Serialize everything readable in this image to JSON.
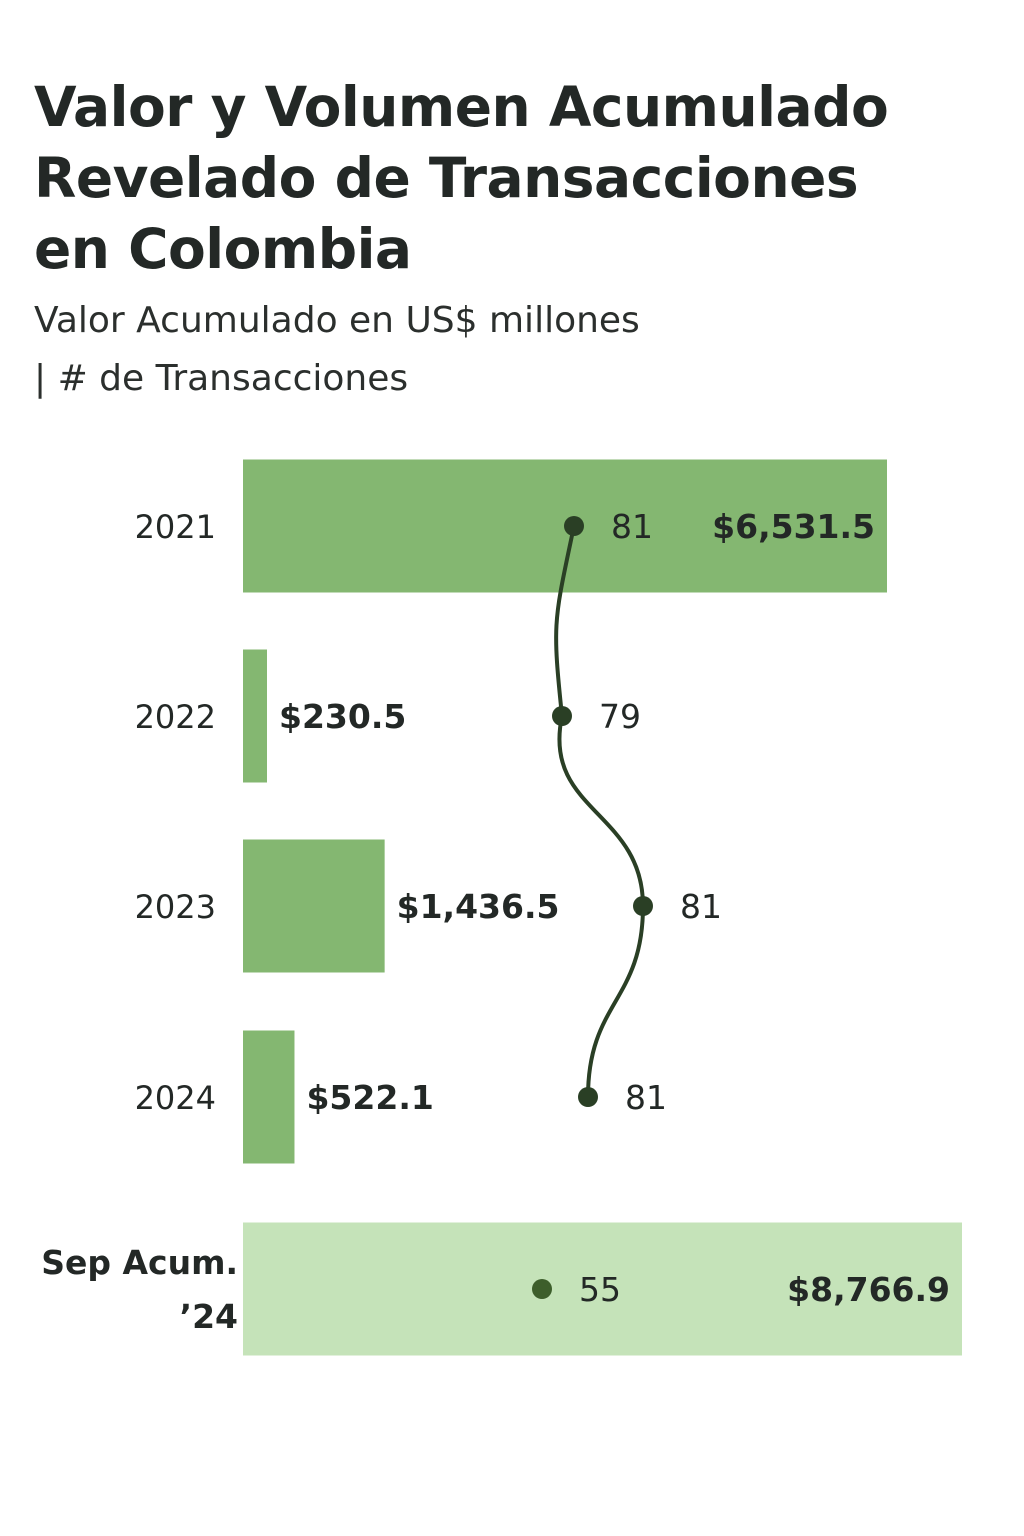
{
  "chart_data": {
    "type": "bar",
    "title": "Valor y Volumen Acumulado Revelado de Transacciones en Colombia",
    "subtitle_line1": "Valor Acumulado en US$ millones",
    "subtitle_line2": "| # de Transacciones",
    "categories": [
      "2021",
      "2022",
      "2023",
      "2024",
      "Sep Acum. '24"
    ],
    "category_lines": [
      [
        "2021"
      ],
      [
        "2022"
      ],
      [
        "2023"
      ],
      [
        "2024"
      ],
      [
        "Sep Acum.",
        "’24"
      ]
    ],
    "series": [
      {
        "name": "Valor Acumulado (US$ millones)",
        "type": "bar",
        "values": [
          6531.5,
          230.5,
          1436.5,
          522.1,
          8766.9
        ],
        "labels": [
          "$6,531.5",
          "$230.5",
          "$1,436.5",
          "$522.1",
          "$8,766.9"
        ]
      },
      {
        "name": "# de Transacciones",
        "type": "line",
        "values": [
          81,
          79,
          81,
          81,
          55
        ],
        "labels": [
          "81",
          "79",
          "81",
          "81",
          "55"
        ]
      }
    ],
    "colors": {
      "bar": "#84b771",
      "total_bar": "#c5e3b9",
      "line": "#2a3f25",
      "total_dot": "#3d5e2b",
      "text": "#232826"
    }
  }
}
